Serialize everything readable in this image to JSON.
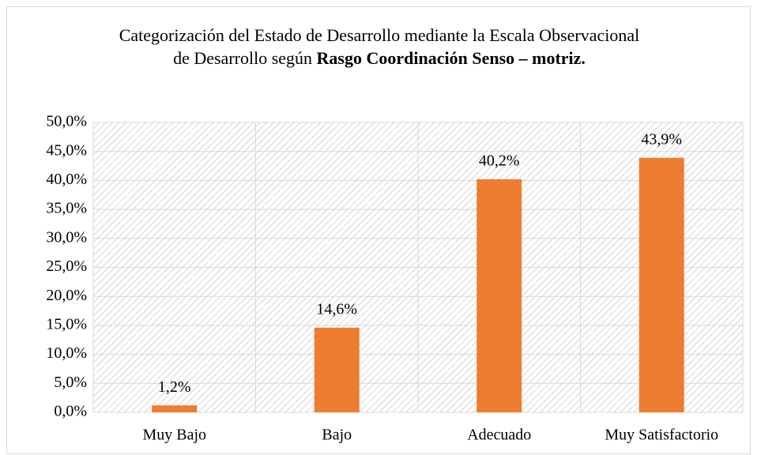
{
  "chart_data": {
    "type": "bar",
    "title": {
      "text": "Categorización del Estado de Desarrollo mediante la Escala Observacional de Desarrollo según",
      "bold": "Rasgo Coordinación Senso – motriz."
    },
    "categories": [
      "Muy Bajo",
      "Bajo",
      "Adecuado",
      "Muy Satisfactorio"
    ],
    "values": [
      1.2,
      14.6,
      40.2,
      43.9
    ],
    "value_labels": [
      "1,2%",
      "14,6%",
      "40,2%",
      "43,9%"
    ],
    "color": "#ed7d31",
    "ylim": [
      0,
      50
    ],
    "yticks": [
      {
        "value": 0,
        "label": "0,0%"
      },
      {
        "value": 5,
        "label": "5,0%"
      },
      {
        "value": 10,
        "label": "10,0%"
      },
      {
        "value": 15,
        "label": "15,0%"
      },
      {
        "value": 20,
        "label": "20,0%"
      },
      {
        "value": 25,
        "label": "25,0%"
      },
      {
        "value": 30,
        "label": "30,0%"
      },
      {
        "value": 35,
        "label": "35,0%"
      },
      {
        "value": 40,
        "label": "40,0%"
      },
      {
        "value": 45,
        "label": "45,0%"
      },
      {
        "value": 50,
        "label": "50,0%"
      }
    ],
    "grid": true
  }
}
